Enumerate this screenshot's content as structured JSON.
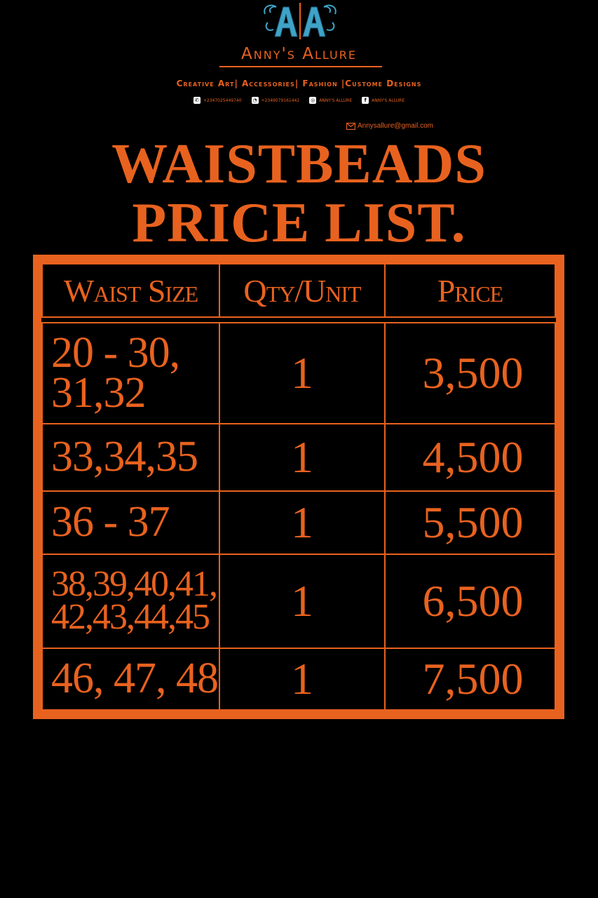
{
  "brand": {
    "logo_icon": "double-a-monogram-logo",
    "name": "Anny's Allure",
    "tagline": "Creative Art| Accessories| Fashion |Custome Designs",
    "contacts": [
      {
        "icon": "phone-icon",
        "text": "+2347025449740"
      },
      {
        "icon": "whatsapp-icon",
        "text": "+2349079161442"
      },
      {
        "icon": "instagram-icon",
        "text": "anny's allure"
      },
      {
        "icon": "facebook-icon",
        "text": "anny's allure"
      }
    ],
    "email": "Annysallure@gmail.com"
  },
  "title": {
    "line1": "WAISTBEADS",
    "line2": "PRICE LIST."
  },
  "table": {
    "headers": [
      "Waist Size",
      "Qty/Unit",
      "Price"
    ],
    "rows": [
      {
        "size_line1": "20 - 30,",
        "size_line2": "31,32",
        "qty": "1",
        "price": "3,500"
      },
      {
        "size_line1": "33,34,35",
        "size_line2": "",
        "qty": "1",
        "price": "4,500"
      },
      {
        "size_line1": "36 - 37",
        "size_line2": "",
        "qty": "1",
        "price": "5,500"
      },
      {
        "size_line1": "38,39,40,41,",
        "size_line2": "42,43,44,45",
        "qty": "1",
        "price": "6,500"
      },
      {
        "size_line1": "46, 47, 48",
        "size_line2": "",
        "qty": "1",
        "price": "7,500"
      }
    ]
  },
  "colors": {
    "background": "#000000",
    "accent": "#e8621f",
    "logo": "#3fa3c8"
  }
}
